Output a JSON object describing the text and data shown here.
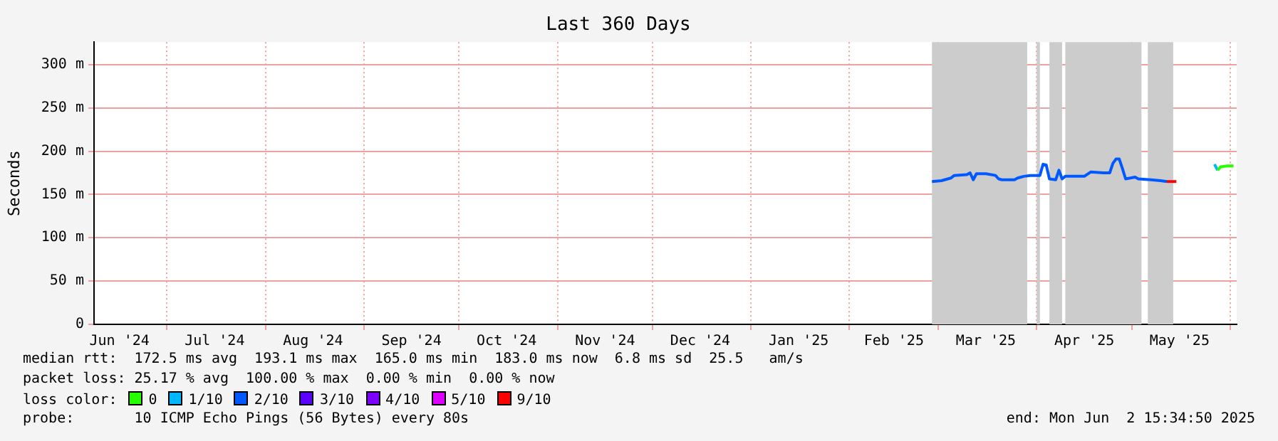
{
  "chart_data": {
    "type": "line",
    "title": "Last 360 Days",
    "ylabel": "Seconds",
    "xlim": [
      "2024-06-08",
      "2025-06-03"
    ],
    "xticks": [
      {
        "value": "2024-06-16",
        "label": "Jun '24"
      },
      {
        "value": "2024-07-01",
        "label": null
      },
      {
        "value": "2024-07-16",
        "label": "Jul '24"
      },
      {
        "value": "2024-08-01",
        "label": null
      },
      {
        "value": "2024-08-16",
        "label": "Aug '24"
      },
      {
        "value": "2024-09-01",
        "label": null
      },
      {
        "value": "2024-09-16",
        "label": "Sep '24"
      },
      {
        "value": "2024-10-01",
        "label": null
      },
      {
        "value": "2024-10-16",
        "label": "Oct '24"
      },
      {
        "value": "2024-11-01",
        "label": null
      },
      {
        "value": "2024-11-16",
        "label": "Nov '24"
      },
      {
        "value": "2024-12-01",
        "label": null
      },
      {
        "value": "2024-12-16",
        "label": "Dec '24"
      },
      {
        "value": "2025-01-01",
        "label": null
      },
      {
        "value": "2025-01-16",
        "label": "Jan '25"
      },
      {
        "value": "2025-02-01",
        "label": null
      },
      {
        "value": "2025-02-15",
        "label": "Feb '25"
      },
      {
        "value": "2025-03-01",
        "label": null
      },
      {
        "value": "2025-03-16",
        "label": "Mar '25"
      },
      {
        "value": "2025-04-01",
        "label": null
      },
      {
        "value": "2025-04-16",
        "label": "Apr '25"
      },
      {
        "value": "2025-05-01",
        "label": null
      },
      {
        "value": "2025-05-16",
        "label": "May '25"
      },
      {
        "value": "2025-06-01",
        "label": null
      }
    ],
    "ylim": [
      0,
      326
    ],
    "yticks": [
      0,
      {
        "value": 50,
        "label": "50 m"
      },
      {
        "value": 100,
        "label": "100 m"
      },
      {
        "value": 150,
        "label": "150 m"
      },
      {
        "value": 200,
        "label": "200 m"
      },
      {
        "value": 250,
        "label": "250 m"
      },
      {
        "value": 300,
        "label": "300 m"
      }
    ],
    "grid": true,
    "legend": "bottom",
    "legend_title": "loss color:",
    "marker": "none",
    "line_style": "solid",
    "bands": [
      {
        "axis": "x",
        "from": "2025-02-27",
        "to": "2025-03-29",
        "color": "#cccccc"
      },
      {
        "axis": "x",
        "from": "2025-04-01",
        "to": "2025-04-02",
        "color": "#cccccc"
      },
      {
        "axis": "x",
        "from": "2025-04-05",
        "to": "2025-04-09",
        "color": "#cccccc"
      },
      {
        "axis": "x",
        "from": "2025-04-10",
        "to": "2025-05-04",
        "color": "#cccccc"
      },
      {
        "axis": "x",
        "from": "2025-05-06",
        "to": "2025-05-14",
        "color": "#cccccc"
      }
    ],
    "series": [
      {
        "name": "0",
        "color": "#26ff00",
        "x": [
          "2025-05-28",
          "2025-05-29",
          "2025-05-31",
          "2025-06-02"
        ],
        "values": [
          178,
          182,
          183,
          183
        ]
      },
      {
        "name": "1/10",
        "color": "#00b8ff",
        "x": [
          "2025-05-27",
          "2025-05-28"
        ],
        "values": [
          185,
          178
        ]
      },
      {
        "name": "2/10",
        "color": "#0059ff",
        "x": [
          "2025-02-27",
          "2025-03-02",
          "2025-03-05",
          "2025-03-06",
          "2025-03-10",
          "2025-03-11",
          "2025-03-12",
          "2025-03-13",
          "2025-03-16",
          "2025-03-19",
          "2025-03-20",
          "2025-03-21",
          "2025-03-25",
          "2025-03-26",
          "2025-03-28",
          "2025-03-30",
          "2025-04-02",
          "2025-04-03",
          "2025-04-04",
          "2025-04-05",
          "2025-04-07",
          "2025-04-08",
          "2025-04-09",
          "2025-04-10",
          "2025-04-14",
          "2025-04-16",
          "2025-04-18",
          "2025-04-22",
          "2025-04-24",
          "2025-04-25",
          "2025-04-26",
          "2025-04-27",
          "2025-04-28",
          "2025-04-29",
          "2025-05-02",
          "2025-05-03",
          "2025-05-07",
          "2025-05-10",
          "2025-05-12"
        ],
        "values": [
          165,
          166,
          169,
          172,
          173,
          175,
          167,
          174,
          174,
          172,
          168,
          167,
          167,
          169,
          171,
          172,
          172,
          185,
          184,
          168,
          167,
          178,
          168,
          171,
          171,
          171,
          176,
          175,
          175,
          186,
          191,
          191,
          180,
          168,
          170,
          168,
          167,
          166,
          165
        ]
      },
      {
        "name": "3/10",
        "color": "#5e00ff"
      },
      {
        "name": "4/10",
        "color": "#7e00ff"
      },
      {
        "name": "5/10",
        "color": "#dd00ff"
      },
      {
        "name": "9/10",
        "color": "#ff0000",
        "x": [
          "2025-05-12",
          "2025-05-15"
        ],
        "values": [
          165,
          165
        ]
      }
    ],
    "annotations": [
      "median rtt:  172.5 ms avg  193.1 ms max  165.0 ms min  183.0 ms now  6.8 ms sd  25.5   am/s",
      "packet loss: 25.17 % avg  100.00 % max  0.00 % min  0.00 % now",
      "probe:       10 ICMP Echo Pings (56 Bytes) every 80s",
      "end: Mon Jun  2 15:34:50 2025"
    ]
  }
}
